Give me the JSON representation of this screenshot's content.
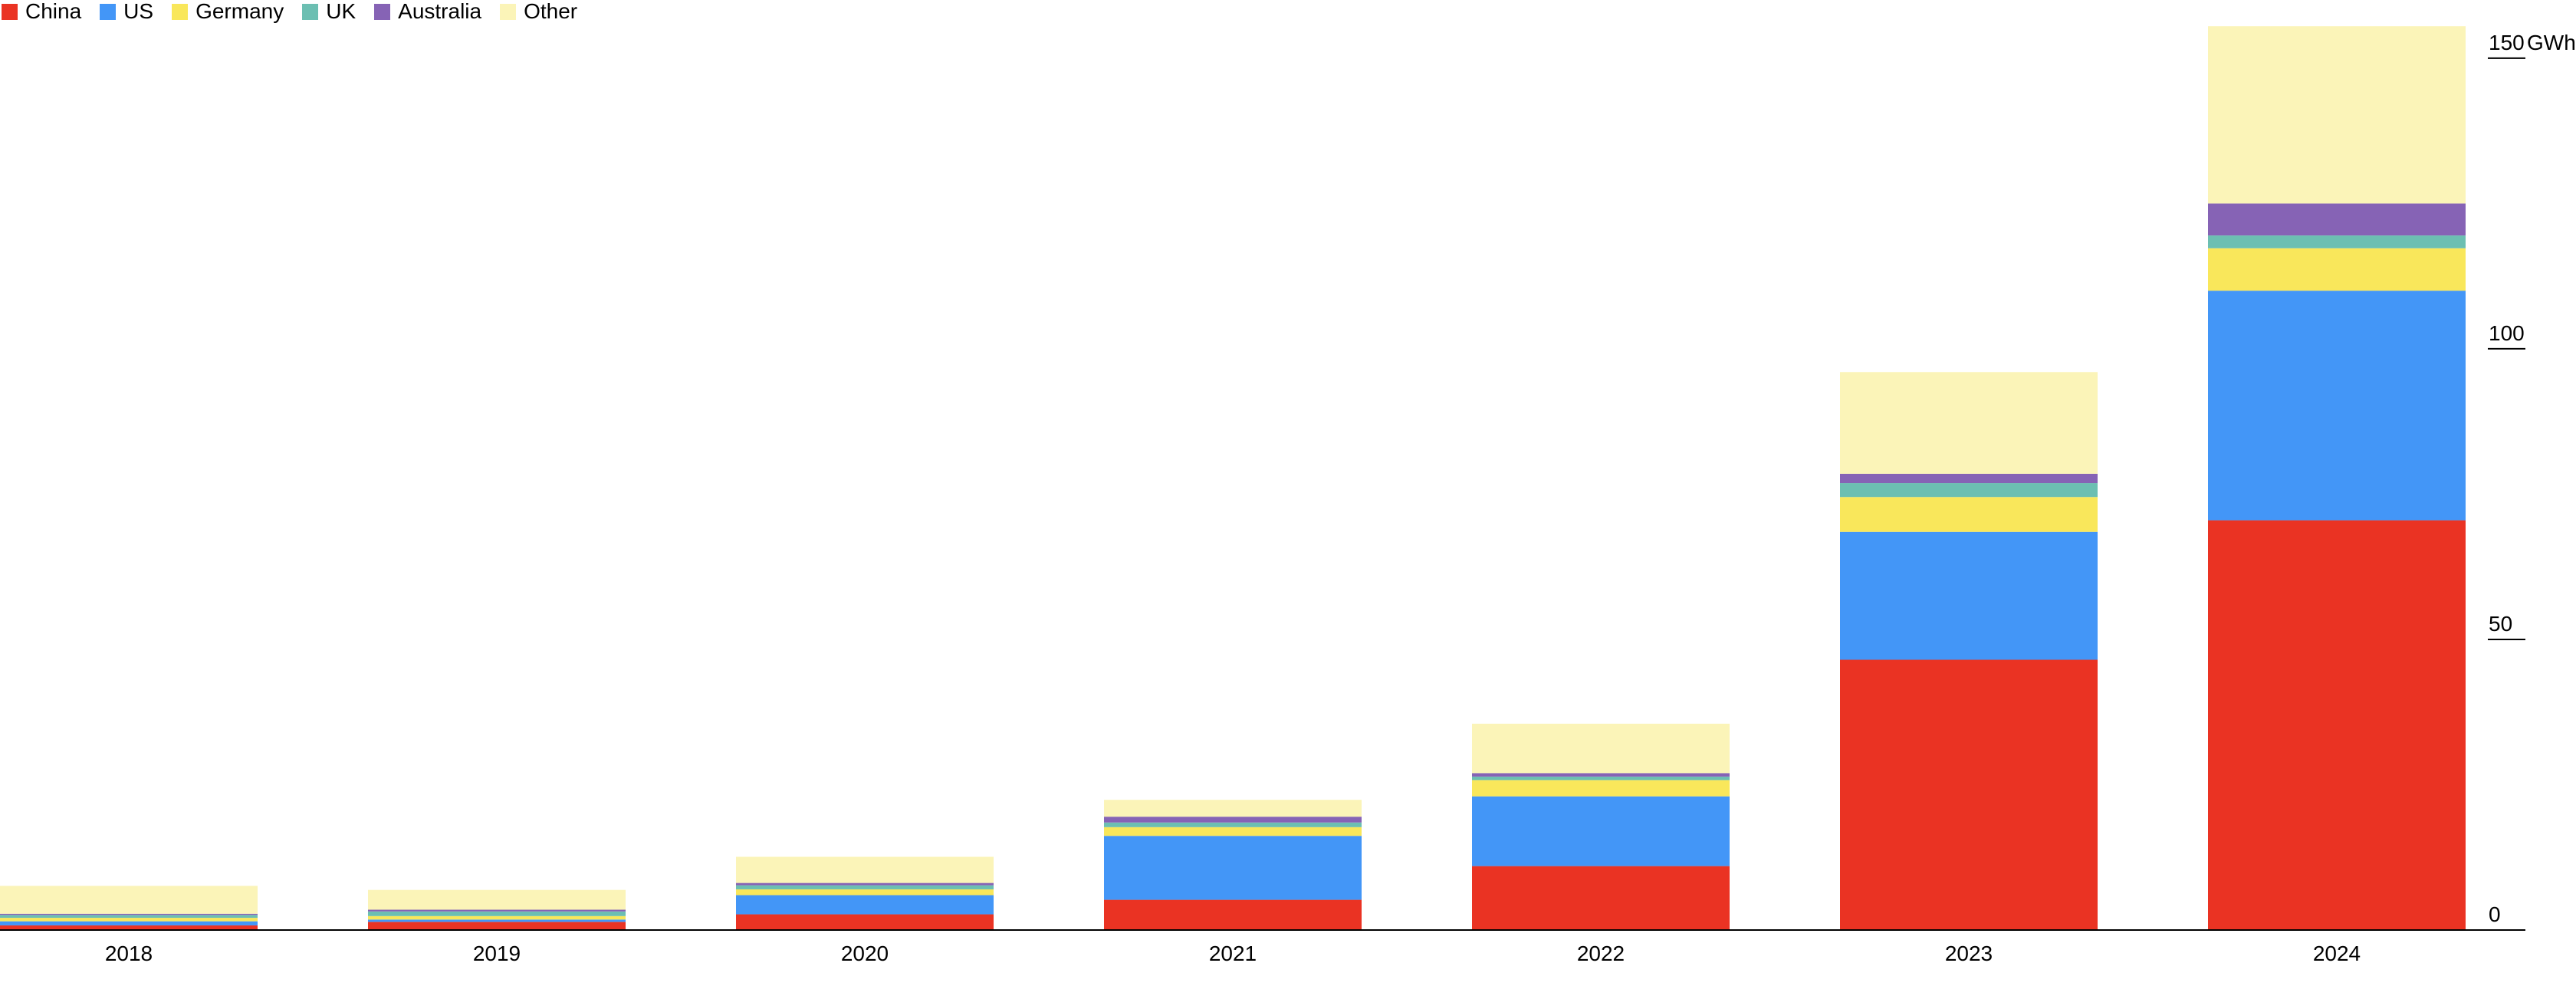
{
  "chart_data": {
    "type": "bar",
    "stacked": true,
    "categories": [
      "2018",
      "2019",
      "2020",
      "2021",
      "2022",
      "2023",
      "2024"
    ],
    "series": [
      {
        "name": "China",
        "color": "#ea3323",
        "values": [
          0.8,
          1.4,
          2.7,
          5.2,
          11.0,
          46.5,
          70.5
        ]
      },
      {
        "name": "US",
        "color": "#4396f7",
        "values": [
          0.7,
          0.4,
          3.3,
          11.0,
          12.0,
          22.0,
          39.5
        ]
      },
      {
        "name": "Germany",
        "color": "#f9e75b",
        "values": [
          0.6,
          0.6,
          1.0,
          1.5,
          2.8,
          6.0,
          7.3
        ]
      },
      {
        "name": "UK",
        "color": "#6cbfb2",
        "values": [
          0.5,
          0.8,
          0.7,
          0.8,
          0.6,
          2.4,
          2.2
        ]
      },
      {
        "name": "Australia",
        "color": "#8663b5",
        "values": [
          0.2,
          0.3,
          0.4,
          1.0,
          0.6,
          1.6,
          5.5
        ]
      },
      {
        "name": "Other",
        "color": "#fbf4b8",
        "values": [
          4.8,
          3.4,
          4.5,
          2.9,
          8.5,
          17.5,
          30.5
        ]
      }
    ],
    "yticks": [
      0,
      50,
      100,
      150
    ],
    "ytick_labels": [
      "0",
      "50",
      "100",
      "150"
    ],
    "ylabel": "GWh",
    "ylim": [
      0,
      155
    ],
    "grid": false,
    "legend_position": "top-left",
    "y_axis_position": "right"
  }
}
